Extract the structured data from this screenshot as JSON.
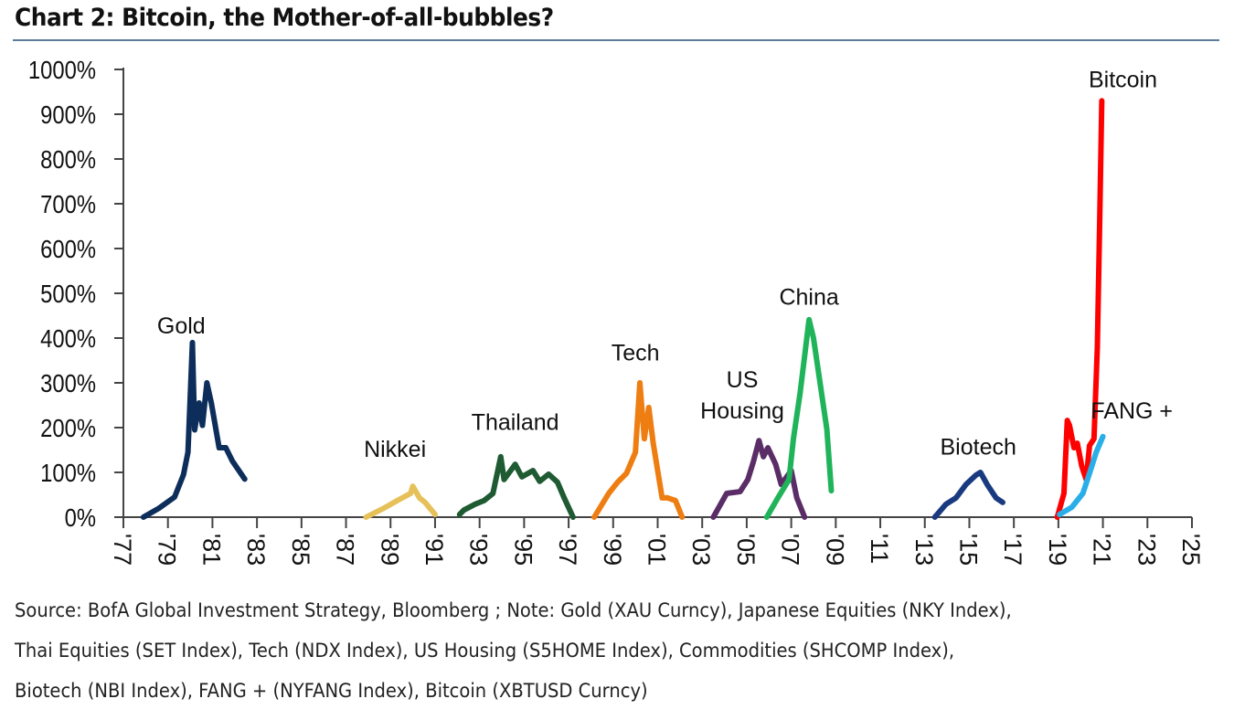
{
  "title": "Chart 2: Bitcoin, the Mother-of-all-bubbles?",
  "source_lines": [
    "Source: BofA Global Investment Strategy, Bloomberg ; Note: Gold (XAU Curncy), Japanese Equities (NKY Index),",
    "Thai Equities (SET Index), Tech (NDX Index), US Housing (S5HOME Index), Commodities (SHCOMP Index),",
    "Biotech (NBI Index), FANG + (NYFANG Index), Bitcoin (XBTUSD Curncy)"
  ],
  "chart_data": {
    "type": "line",
    "title": "Chart 2: Bitcoin, the Mother-of-all-bubbles?",
    "xlabel": "",
    "ylabel": "",
    "xlim": [
      1977,
      2025
    ],
    "ylim": [
      0,
      1000
    ],
    "x_ticks": [
      "'77",
      "'79",
      "'81",
      "'83",
      "'85",
      "'87",
      "'89",
      "'91",
      "'93",
      "'95",
      "'97",
      "'99",
      "'01",
      "'03",
      "'05",
      "'07",
      "'09",
      "'11",
      "'13",
      "'15",
      "'17",
      "'19",
      "'21",
      "'23",
      "'25"
    ],
    "y_ticks": [
      "0%",
      "100%",
      "200%",
      "300%",
      "400%",
      "500%",
      "600%",
      "700%",
      "800%",
      "900%",
      "1000%"
    ],
    "grid": false,
    "legend": "none (direct labels)",
    "series": [
      {
        "name": "Gold",
        "color": "#0d2e5a",
        "label_at": [
          1979.6,
          410
        ],
        "points": [
          [
            1977.9,
            0
          ],
          [
            1978.6,
            20
          ],
          [
            1979.3,
            45
          ],
          [
            1979.7,
            95
          ],
          [
            1979.9,
            145
          ],
          [
            1980.1,
            390
          ],
          [
            1980.2,
            195
          ],
          [
            1980.4,
            255
          ],
          [
            1980.55,
            205
          ],
          [
            1980.75,
            300
          ],
          [
            1980.95,
            255
          ],
          [
            1981.3,
            155
          ],
          [
            1981.6,
            155
          ],
          [
            1981.9,
            125
          ],
          [
            1982.45,
            85
          ]
        ]
      },
      {
        "name": "Nikkei",
        "color": "#e6c15a",
        "label_at": [
          1989.2,
          135
        ],
        "points": [
          [
            1987.9,
            0
          ],
          [
            1988.7,
            20
          ],
          [
            1989.3,
            37
          ],
          [
            1989.9,
            53
          ],
          [
            1990.0,
            69
          ],
          [
            1990.3,
            43
          ],
          [
            1990.55,
            33
          ],
          [
            1991.0,
            6
          ]
        ]
      },
      {
        "name": "Thailand",
        "color": "#1e5a32",
        "label_at": [
          1994.6,
          195
        ],
        "points": [
          [
            1992.1,
            6
          ],
          [
            1992.3,
            16
          ],
          [
            1992.8,
            29
          ],
          [
            1993.2,
            37
          ],
          [
            1993.6,
            53
          ],
          [
            1993.95,
            135
          ],
          [
            1994.1,
            84
          ],
          [
            1994.6,
            118
          ],
          [
            1994.9,
            90
          ],
          [
            1995.4,
            104
          ],
          [
            1995.7,
            80
          ],
          [
            1996.1,
            96
          ],
          [
            1996.5,
            78
          ],
          [
            1996.8,
            43
          ],
          [
            1997.2,
            0
          ]
        ]
      },
      {
        "name": "Tech",
        "color": "#ee7d12",
        "label_at": [
          2000.0,
          350
        ],
        "points": [
          [
            1998.15,
            0
          ],
          [
            1998.8,
            53
          ],
          [
            1999.2,
            78
          ],
          [
            1999.6,
            98
          ],
          [
            2000.0,
            145
          ],
          [
            2000.2,
            300
          ],
          [
            2000.4,
            175
          ],
          [
            2000.6,
            245
          ],
          [
            2000.8,
            165
          ],
          [
            2001.0,
            104
          ],
          [
            2001.2,
            43
          ],
          [
            2001.45,
            43
          ],
          [
            2001.8,
            37
          ],
          [
            2002.1,
            0
          ]
        ]
      },
      {
        "name": "US Housing",
        "label_lines": [
          "US",
          "Housing"
        ],
        "color": "#5a2d66",
        "label_at": [
          2004.8,
          290
        ],
        "points": [
          [
            2003.5,
            0
          ],
          [
            2004.1,
            53
          ],
          [
            2004.7,
            57
          ],
          [
            2005.05,
            84
          ],
          [
            2005.3,
            124
          ],
          [
            2005.55,
            171
          ],
          [
            2005.75,
            135
          ],
          [
            2005.95,
            155
          ],
          [
            2006.3,
            118
          ],
          [
            2006.55,
            73
          ],
          [
            2007.0,
            104
          ],
          [
            2007.25,
            43
          ],
          [
            2007.6,
            0
          ]
        ]
      },
      {
        "name": "China",
        "color": "#1fb35a",
        "label_at": [
          2007.8,
          475
        ],
        "points": [
          [
            2005.9,
            0
          ],
          [
            2006.4,
            43
          ],
          [
            2006.9,
            84
          ],
          [
            2007.1,
            176
          ],
          [
            2007.4,
            278
          ],
          [
            2007.8,
            441
          ],
          [
            2008.0,
            400
          ],
          [
            2008.3,
            298
          ],
          [
            2008.6,
            196
          ],
          [
            2008.8,
            59
          ]
        ]
      },
      {
        "name": "Biotech",
        "color": "#1a3a80",
        "label_at": [
          2015.4,
          140
        ],
        "points": [
          [
            2013.45,
            0
          ],
          [
            2013.95,
            29
          ],
          [
            2014.4,
            43
          ],
          [
            2014.85,
            73
          ],
          [
            2015.3,
            94
          ],
          [
            2015.5,
            100
          ],
          [
            2015.8,
            73
          ],
          [
            2016.2,
            43
          ],
          [
            2016.5,
            33
          ]
        ]
      },
      {
        "name": "Bitcoin",
        "color": "#ff0000",
        "label_at": [
          2021.9,
          960
        ],
        "points": [
          [
            2018.95,
            0
          ],
          [
            2019.25,
            53
          ],
          [
            2019.4,
            216
          ],
          [
            2019.5,
            205
          ],
          [
            2019.7,
            155
          ],
          [
            2019.85,
            165
          ],
          [
            2020.05,
            114
          ],
          [
            2020.25,
            84
          ],
          [
            2020.4,
            160
          ],
          [
            2020.6,
            175
          ],
          [
            2020.75,
            380
          ],
          [
            2020.85,
            645
          ],
          [
            2020.95,
            930
          ]
        ]
      },
      {
        "name": "FANG +",
        "color": "#29aee8",
        "label_at": [
          2022.3,
          220
        ],
        "points": [
          [
            2019.05,
            6
          ],
          [
            2019.6,
            22
          ],
          [
            2020.1,
            53
          ],
          [
            2020.4,
            98
          ],
          [
            2020.7,
            145
          ],
          [
            2021.0,
            180
          ]
        ]
      }
    ]
  }
}
